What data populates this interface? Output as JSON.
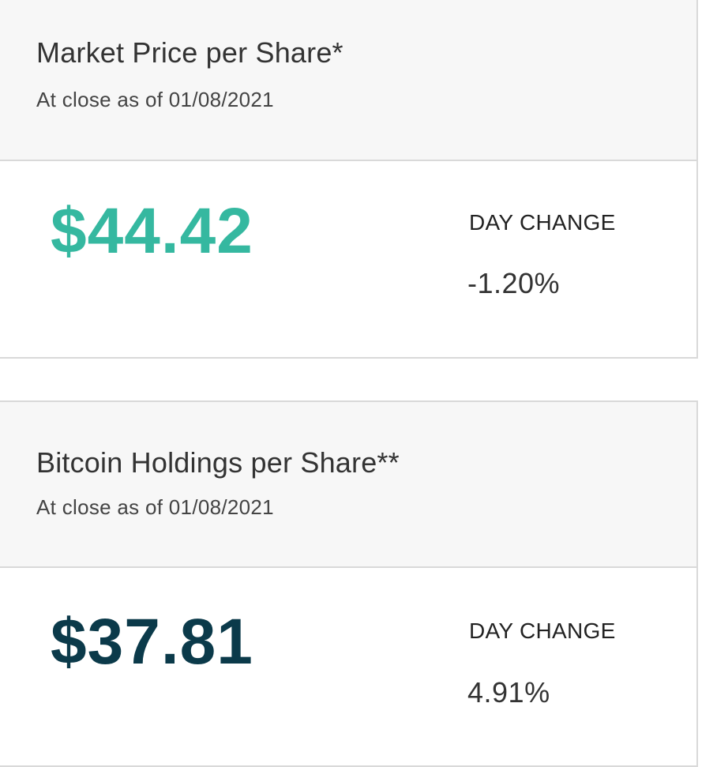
{
  "market_price": {
    "title": "Market Price per Share*",
    "subtitle": "At close as of 01/08/2021",
    "price": "$44.42",
    "price_color": "#35b8a0",
    "change_label": "DAY CHANGE",
    "change_value": "-1.20%"
  },
  "bitcoin_holdings": {
    "title": "Bitcoin Holdings per Share**",
    "subtitle": "At close as of 01/08/2021",
    "price": "$37.81",
    "price_color": "#0b3a4a",
    "change_label": "DAY CHANGE",
    "change_value": "4.91%"
  }
}
